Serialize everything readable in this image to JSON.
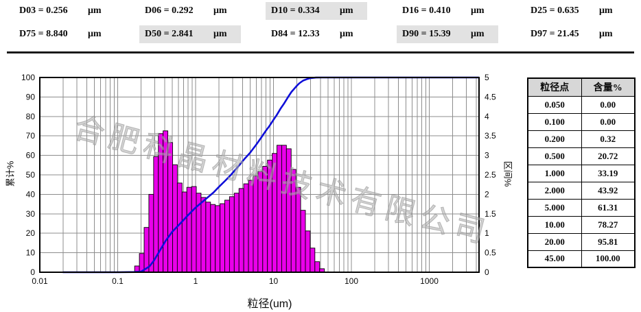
{
  "header": {
    "d_values": [
      {
        "text": "D03 = 0.256",
        "unit": "μm",
        "highlight": false
      },
      {
        "text": "D06 = 0.292",
        "unit": "μm",
        "highlight": false
      },
      {
        "text": "D10 = 0.334",
        "unit": "μm",
        "highlight": true
      },
      {
        "text": "D16 = 0.410",
        "unit": "μm",
        "highlight": false
      },
      {
        "text": "D25 = 0.635",
        "unit": "μm",
        "highlight": false
      },
      {
        "text": "D75 = 8.840",
        "unit": "μm",
        "highlight": false
      },
      {
        "text": "D50 = 2.841",
        "unit": "μm",
        "highlight": true
      },
      {
        "text": "D84 = 12.33",
        "unit": "μm",
        "highlight": false
      },
      {
        "text": "D90 = 15.39",
        "unit": "μm",
        "highlight": true
      },
      {
        "text": "D97 = 21.45",
        "unit": "μm",
        "highlight": false
      }
    ]
  },
  "watermark": {
    "text": "合肥科晶材料技术有限公司"
  },
  "chart_data": {
    "type": "bar+line",
    "title": "",
    "xlabel": "粒径(um)",
    "ylabel_left": "累计%",
    "ylabel_right": "区间%",
    "x_scale": "log",
    "grid": true,
    "x_range": [
      0.01,
      4350
    ],
    "x_ticks": [
      "0.01",
      "0.1",
      "1",
      "10",
      "100",
      "1000"
    ],
    "y_left_range": [
      0,
      100
    ],
    "y_left_ticks": [
      0,
      10,
      20,
      30,
      40,
      50,
      60,
      70,
      80,
      90,
      100
    ],
    "y_right_range": [
      0,
      5
    ],
    "y_right_ticks": [
      0,
      0.5,
      1,
      1.5,
      2,
      2.5,
      3,
      3.5,
      4,
      4.5,
      5
    ],
    "bars": {
      "axis": "right",
      "start_um": 0.165,
      "ratio": 1.1505,
      "values": [
        0.16,
        0.48,
        1.15,
        2.0,
        2.97,
        3.56,
        3.63,
        3.33,
        2.76,
        2.29,
        2.06,
        2.18,
        2.2,
        2.03,
        1.92,
        1.8,
        1.74,
        1.71,
        1.76,
        1.85,
        1.94,
        2.03,
        2.15,
        2.27,
        2.36,
        2.47,
        2.59,
        2.72,
        2.88,
        3.05,
        3.26,
        3.26,
        3.17,
        2.64,
        2.18,
        1.59,
        1.06,
        0.62,
        0.27,
        0.09
      ]
    },
    "cumulative_curve": {
      "axis": "left",
      "points": [
        [
          0.02,
          0
        ],
        [
          0.1,
          0
        ],
        [
          0.165,
          0.1
        ],
        [
          0.2,
          0.32
        ],
        [
          0.256,
          3
        ],
        [
          0.292,
          6
        ],
        [
          0.334,
          10
        ],
        [
          0.41,
          16
        ],
        [
          0.5,
          20.72
        ],
        [
          0.635,
          25
        ],
        [
          0.8,
          29.3
        ],
        [
          1.0,
          33.19
        ],
        [
          1.3,
          37
        ],
        [
          1.7,
          41
        ],
        [
          2.0,
          43.92
        ],
        [
          2.4,
          47
        ],
        [
          2.841,
          50
        ],
        [
          3.5,
          54.2
        ],
        [
          4.2,
          58
        ],
        [
          5.0,
          61.31
        ],
        [
          6.0,
          65.5
        ],
        [
          7.0,
          69.3
        ],
        [
          8.0,
          72.7
        ],
        [
          8.84,
          75
        ],
        [
          10.0,
          78.27
        ],
        [
          11.0,
          80.7
        ],
        [
          12.33,
          84
        ],
        [
          13.5,
          86.3
        ],
        [
          15.39,
          90
        ],
        [
          17.0,
          92.6
        ],
        [
          20.0,
          95.81
        ],
        [
          21.45,
          97
        ],
        [
          24.0,
          98.4
        ],
        [
          27.0,
          99.2
        ],
        [
          30.0,
          99.7
        ],
        [
          35.0,
          99.95
        ],
        [
          40.0,
          100
        ],
        [
          4300,
          100
        ]
      ]
    },
    "colors": {
      "bar_fill": "#ea00ea",
      "bar_stroke": "#000000",
      "curve": "#0f0fd8",
      "grid": "#8c8c8c",
      "plot_border": "#000000"
    }
  },
  "table": {
    "headers": [
      "粒径点",
      "含量%"
    ],
    "rows": [
      [
        "0.050",
        "0.00"
      ],
      [
        "0.100",
        "0.00"
      ],
      [
        "0.200",
        "0.32"
      ],
      [
        "0.500",
        "20.72"
      ],
      [
        "1.000",
        "33.19"
      ],
      [
        "2.000",
        "43.92"
      ],
      [
        "5.000",
        "61.31"
      ],
      [
        "10.00",
        "78.27"
      ],
      [
        "20.00",
        "95.81"
      ],
      [
        "45.00",
        "100.00"
      ]
    ]
  }
}
